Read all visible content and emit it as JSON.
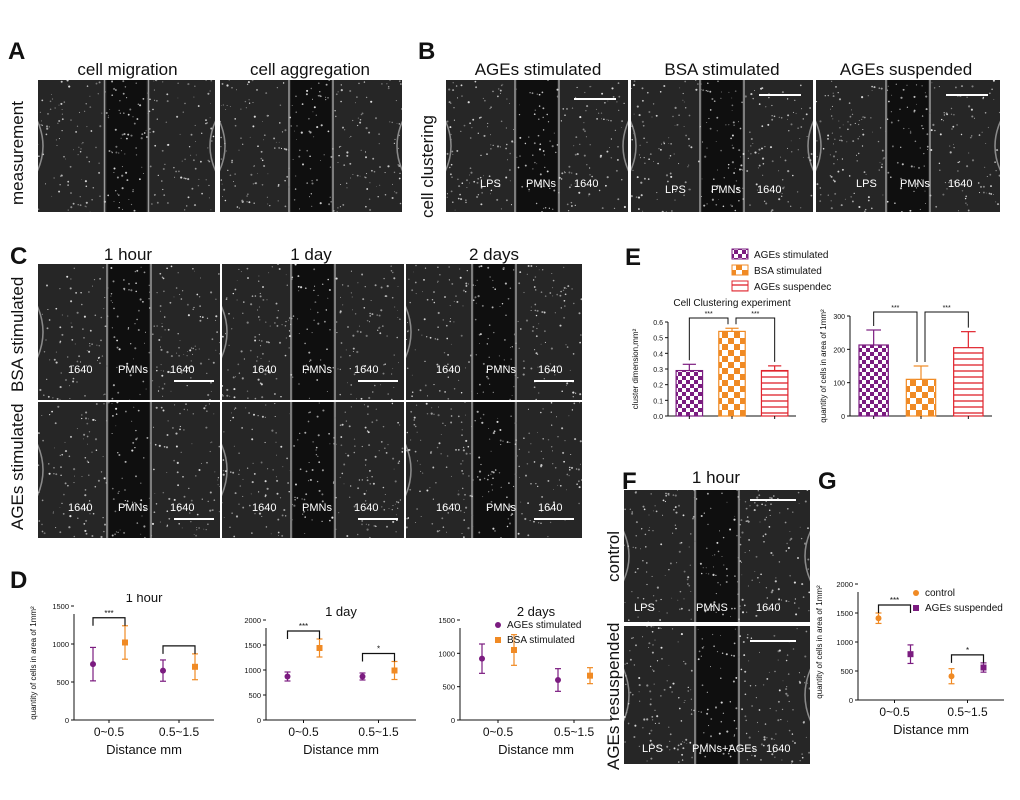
{
  "panels": {
    "A": {
      "letter": "A",
      "row_label": "measurement",
      "cols": [
        "cell migration",
        "cell aggregation"
      ]
    },
    "B": {
      "letter": "B",
      "row_label": "cell   clustering",
      "cols": [
        "AGEs stimulated",
        "BSA stimulated",
        "AGEs suspended"
      ],
      "labels": [
        [
          "LPS",
          "PMNs",
          "1640"
        ],
        [
          "LPS",
          "PMNs",
          "1640"
        ],
        [
          "LPS",
          "PMNs",
          "1640"
        ]
      ]
    },
    "C": {
      "letter": "C",
      "cols": [
        "1 hour",
        "1 day",
        "2 days"
      ],
      "rows": [
        "BSA stimulated",
        "AGEs stimulated"
      ],
      "labels": [
        "1640",
        "PMNs",
        "1640"
      ]
    },
    "E": {
      "letter": "E"
    },
    "F": {
      "letter": "F",
      "title": "1 hour",
      "rows": [
        "control",
        "AGEs resuspended"
      ],
      "labels": [
        [
          "LPS",
          "PMNS",
          "1640"
        ],
        [
          "LPS",
          "PMNs+AGEs",
          "1640"
        ]
      ]
    },
    "D": {
      "letter": "D"
    },
    "G": {
      "letter": "G"
    }
  },
  "colors": {
    "purple": "#7b1c80",
    "orange": "#f08a24",
    "red": "#e0242d"
  },
  "chart_data": [
    {
      "id": "E1",
      "type": "bar",
      "title": "Cell Clustering experiment",
      "ylabel": "cluster dimension,mm²",
      "categories": [
        "AGEs stimulated",
        "BSA stimulated",
        "AGEs suspended"
      ],
      "values": [
        0.29,
        0.54,
        0.29
      ],
      "errors": [
        0.04,
        0.02,
        0.03
      ],
      "ylim": [
        0,
        0.6
      ],
      "yticks": [
        "0.0",
        "0.1",
        "0.2",
        "0.3",
        "0.4",
        "0.5",
        "0.6"
      ],
      "sig": [
        {
          "from": 0,
          "to": 1,
          "label": "***"
        },
        {
          "from": 1,
          "to": 2,
          "label": "***"
        }
      ],
      "legend": [
        "AGEs stimulated",
        "BSA stimulated",
        "AGEs suspendec"
      ]
    },
    {
      "id": "E2",
      "type": "bar",
      "ylabel": "quantity of cells in area of 1mm²",
      "categories": [
        "AGEs stimulated",
        "BSA stimulated",
        "AGEs suspended"
      ],
      "values": [
        213,
        110,
        205
      ],
      "errors": [
        45,
        40,
        48
      ],
      "ylim": [
        0,
        300
      ],
      "yticks": [
        "0",
        "100",
        "200",
        "300"
      ],
      "sig": [
        {
          "from": 0,
          "to": 1,
          "label": "***"
        },
        {
          "from": 1,
          "to": 2,
          "label": "***"
        }
      ]
    },
    {
      "id": "D1",
      "type": "scatter",
      "title": "1 hour",
      "ylabel": "quantity of cells in area of 1mm²",
      "xlabel": "Distance mm",
      "categories": [
        "0~0.5",
        "0.5~1.5"
      ],
      "ylim": [
        0,
        1500
      ],
      "yticks": [
        "0",
        "500",
        "1000",
        "1500"
      ],
      "series": [
        {
          "name": "AGEs stimulated",
          "values": [
            735,
            650
          ],
          "errors": [
            220,
            140
          ]
        },
        {
          "name": "BSA stimulated",
          "values": [
            1020,
            700
          ],
          "errors": [
            220,
            170
          ]
        }
      ],
      "sig": [
        {
          "cat": 0,
          "label": "***"
        },
        {
          "cat": 1,
          "label": ""
        }
      ]
    },
    {
      "id": "D2",
      "type": "scatter",
      "title": "1 day",
      "xlabel": "Distance mm",
      "categories": [
        "0~0.5",
        "0.5~1.5"
      ],
      "ylim": [
        0,
        2000
      ],
      "yticks": [
        "0",
        "500",
        "1000",
        "1500",
        "2000"
      ],
      "series": [
        {
          "name": "AGEs stimulated",
          "values": [
            870,
            870
          ],
          "errors": [
            90,
            70
          ]
        },
        {
          "name": "BSA stimulated",
          "values": [
            1440,
            990
          ],
          "errors": [
            180,
            180
          ]
        }
      ],
      "sig": [
        {
          "cat": 0,
          "label": "***"
        },
        {
          "cat": 1,
          "label": "*"
        }
      ]
    },
    {
      "id": "D3",
      "type": "scatter",
      "title": "2 days",
      "xlabel": "Distance mm",
      "categories": [
        "0~0.5",
        "0.5~1.5"
      ],
      "ylim": [
        0,
        1500
      ],
      "yticks": [
        "0",
        "500",
        "1000",
        "1500"
      ],
      "series": [
        {
          "name": "AGEs stimulated",
          "values": [
            920,
            600
          ],
          "errors": [
            220,
            170
          ]
        },
        {
          "name": "BSA stimulated",
          "values": [
            1050,
            665
          ],
          "errors": [
            230,
            120
          ]
        }
      ],
      "legend": [
        "AGEs stimulated",
        "BSA stimulated"
      ]
    },
    {
      "id": "G1",
      "type": "scatter",
      "ylabel": "quantity of cells in area of 1mm²",
      "xlabel": "Distance mm",
      "categories": [
        "0~0.5",
        "0.5~1.5"
      ],
      "ylim": [
        0,
        2000
      ],
      "yticks": [
        "0",
        "500",
        "1000",
        "1500",
        "2000"
      ],
      "series": [
        {
          "name": "control",
          "values": [
            1410,
            410
          ],
          "errors": [
            90,
            130
          ]
        },
        {
          "name": "AGEs suspended",
          "values": [
            790,
            560
          ],
          "errors": [
            160,
            80
          ]
        }
      ],
      "sig": [
        {
          "cat": 0,
          "label": "***"
        },
        {
          "cat": 1,
          "label": "*"
        }
      ],
      "legend": [
        "control",
        "AGEs suspended"
      ]
    }
  ]
}
